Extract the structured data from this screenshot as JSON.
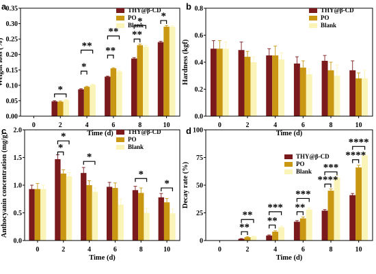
{
  "colors": {
    "thy": "#7a1a1c",
    "po": "#c99712",
    "blank": "#fbf4b8",
    "bracket": "#000000",
    "red_star": "#e8102a"
  },
  "chart_data": [
    {
      "panel": "a",
      "type": "bar",
      "categories": [
        "0",
        "2",
        "4",
        "6",
        "8",
        "10"
      ],
      "xlabel": "Time (d)",
      "ylabel": "Weight loss (%)",
      "ylim": [
        0.0,
        0.35
      ],
      "yticks": [
        "0.00",
        "0.05",
        "0.10",
        "0.15",
        "0.20",
        "0.25",
        "0.30",
        "0.35"
      ],
      "legend_position": "top-right",
      "series": [
        {
          "name": "THY@β-CD",
          "values": [
            0,
            0.048,
            0.087,
            0.128,
            0.187,
            0.24
          ],
          "err": [
            0,
            0.002,
            0.002,
            0.002,
            0.003,
            0.003
          ]
        },
        {
          "name": "PO",
          "values": [
            0,
            0.047,
            0.095,
            0.155,
            0.23,
            0.29
          ],
          "err": [
            0,
            0.002,
            0.002,
            0.002,
            0.004,
            0.004
          ]
        },
        {
          "name": "Blank",
          "values": [
            0,
            0.052,
            0.102,
            0.145,
            0.225,
            0.29
          ],
          "err": [
            0,
            0.002,
            0.002,
            0.002,
            0.004,
            0.003
          ]
        }
      ],
      "annotations": [
        {
          "group": 1,
          "from": 0,
          "to": 2,
          "level": 0.072,
          "text": "*"
        },
        {
          "group": 2,
          "from": 0,
          "to": 1,
          "level": 0.146,
          "text": "*"
        },
        {
          "group": 2,
          "from": 0,
          "to": 2,
          "level": 0.214,
          "text": "**"
        },
        {
          "group": 3,
          "from": 0,
          "to": 1,
          "level": 0.198,
          "text": "**"
        },
        {
          "group": 3,
          "from": 0,
          "to": 2,
          "level": 0.26,
          "text": "**",
          "red": true
        },
        {
          "group": 4,
          "from": 0,
          "to": 1,
          "level": 0.25,
          "text": "**"
        },
        {
          "group": 4,
          "from": 0,
          "to": 2,
          "level": 0.294,
          "text": "*"
        },
        {
          "group": 5,
          "from": 0,
          "to": 1,
          "level": 0.31,
          "text": "*"
        }
      ]
    },
    {
      "panel": "b",
      "type": "bar",
      "categories": [
        "0",
        "2",
        "4",
        "6",
        "8",
        "10"
      ],
      "xlabel": "Time (d)",
      "ylabel": "Hardness (kgf)",
      "ylim": [
        0.0,
        0.8
      ],
      "yticks": [
        "0.0",
        "0.2",
        "0.4",
        "0.6",
        "0.8"
      ],
      "legend_position": "top-right",
      "series": [
        {
          "name": "THY@β-CD",
          "values": [
            0.5,
            0.49,
            0.45,
            0.39,
            0.41,
            0.34
          ],
          "err": [
            0.06,
            0.06,
            0.05,
            0.05,
            0.04,
            0.07
          ]
        },
        {
          "name": "PO",
          "values": [
            0.5,
            0.44,
            0.45,
            0.36,
            0.34,
            0.28
          ],
          "err": [
            0.06,
            0.04,
            0.07,
            0.05,
            0.06,
            0.04
          ]
        },
        {
          "name": "Blank",
          "values": [
            0.5,
            0.4,
            0.42,
            0.31,
            0.3,
            0.28
          ],
          "err": [
            0.05,
            0.04,
            0.05,
            0.04,
            0.08,
            0.06
          ]
        }
      ],
      "annotations": []
    },
    {
      "panel": "c",
      "type": "bar",
      "categories": [
        "0",
        "2",
        "4",
        "6",
        "8",
        "10"
      ],
      "xlabel": "Time (d)",
      "ylabel": "Anthocyanin concentration (mg/g)",
      "ylim": [
        0.0,
        2.0
      ],
      "yticks": [
        "0.0",
        "0.5",
        "1.0",
        "1.5",
        "2.0"
      ],
      "legend_position": "top-right",
      "series": [
        {
          "name": "THY@β-CD",
          "values": [
            0.93,
            1.47,
            1.22,
            0.97,
            0.91,
            0.78
          ],
          "err": [
            0.07,
            0.08,
            0.1,
            0.08,
            0.07,
            0.07
          ]
        },
        {
          "name": "PO",
          "values": [
            0.93,
            1.21,
            1.0,
            0.95,
            0.86,
            0.69
          ],
          "err": [
            0.1,
            0.07,
            0.08,
            0.09,
            0.09,
            0.07
          ]
        },
        {
          "name": "Blank",
          "values": [
            0.93,
            1.16,
            0.88,
            0.65,
            0.5,
            0.49
          ],
          "err": [
            0.07,
            0.07,
            0.07,
            0.1,
            0.08,
            0.08
          ]
        }
      ],
      "annotations": [
        {
          "group": 1,
          "from": 0,
          "to": 1,
          "level": 1.6,
          "text": "*"
        },
        {
          "group": 1,
          "from": 0,
          "to": 2,
          "level": 1.8,
          "text": "*"
        },
        {
          "group": 2,
          "from": 0,
          "to": 2,
          "level": 1.43,
          "text": "*",
          "red": true
        },
        {
          "group": 4,
          "from": 0,
          "to": 2,
          "level": 1.12,
          "text": "*"
        },
        {
          "group": 5,
          "from": 0,
          "to": 2,
          "level": 0.95,
          "text": "*"
        }
      ]
    },
    {
      "panel": "d",
      "type": "bar",
      "categories": [
        "0",
        "2",
        "4",
        "6",
        "8",
        "10"
      ],
      "xlabel": "Time (d)",
      "ylabel": "Decay rate (%)",
      "ylim": [
        0,
        100
      ],
      "yticks": [
        "0",
        "25",
        "50",
        "75",
        "100"
      ],
      "legend_position": "top-left",
      "series": [
        {
          "name": "THY@β-CD",
          "values": [
            0,
            1.5,
            4.5,
            17,
            27,
            41
          ],
          "err": [
            0,
            0.3,
            0.5,
            1,
            1,
            1.5
          ]
        },
        {
          "name": "PO",
          "values": [
            0,
            3,
            8,
            20,
            45,
            66
          ],
          "err": [
            0,
            0.5,
            0.8,
            1.2,
            1.5,
            2
          ]
        },
        {
          "name": "Blank",
          "values": [
            0,
            3.5,
            12,
            28,
            57,
            77
          ],
          "err": [
            0,
            0.5,
            1,
            1.5,
            2,
            2.5
          ]
        }
      ],
      "annotations": [
        {
          "group": 1,
          "from": 0,
          "to": 1,
          "level": 8,
          "text": "**"
        },
        {
          "group": 1,
          "from": 0,
          "to": 2,
          "level": 19,
          "text": "**"
        },
        {
          "group": 2,
          "from": 0,
          "to": 1,
          "level": 14,
          "text": "**"
        },
        {
          "group": 2,
          "from": 0,
          "to": 2,
          "level": 26,
          "text": "***"
        },
        {
          "group": 3,
          "from": 0,
          "to": 1,
          "level": 26,
          "text": "**"
        },
        {
          "group": 3,
          "from": 0,
          "to": 2,
          "level": 38,
          "text": "***"
        },
        {
          "group": 4,
          "from": 0,
          "to": 1,
          "level": 51,
          "text": "****"
        },
        {
          "group": 4,
          "from": 0,
          "to": 2,
          "level": 62,
          "text": "***"
        },
        {
          "group": 5,
          "from": 0,
          "to": 1,
          "level": 73,
          "text": "****"
        },
        {
          "group": 5,
          "from": 0,
          "to": 2,
          "level": 85,
          "text": "****"
        }
      ]
    }
  ]
}
